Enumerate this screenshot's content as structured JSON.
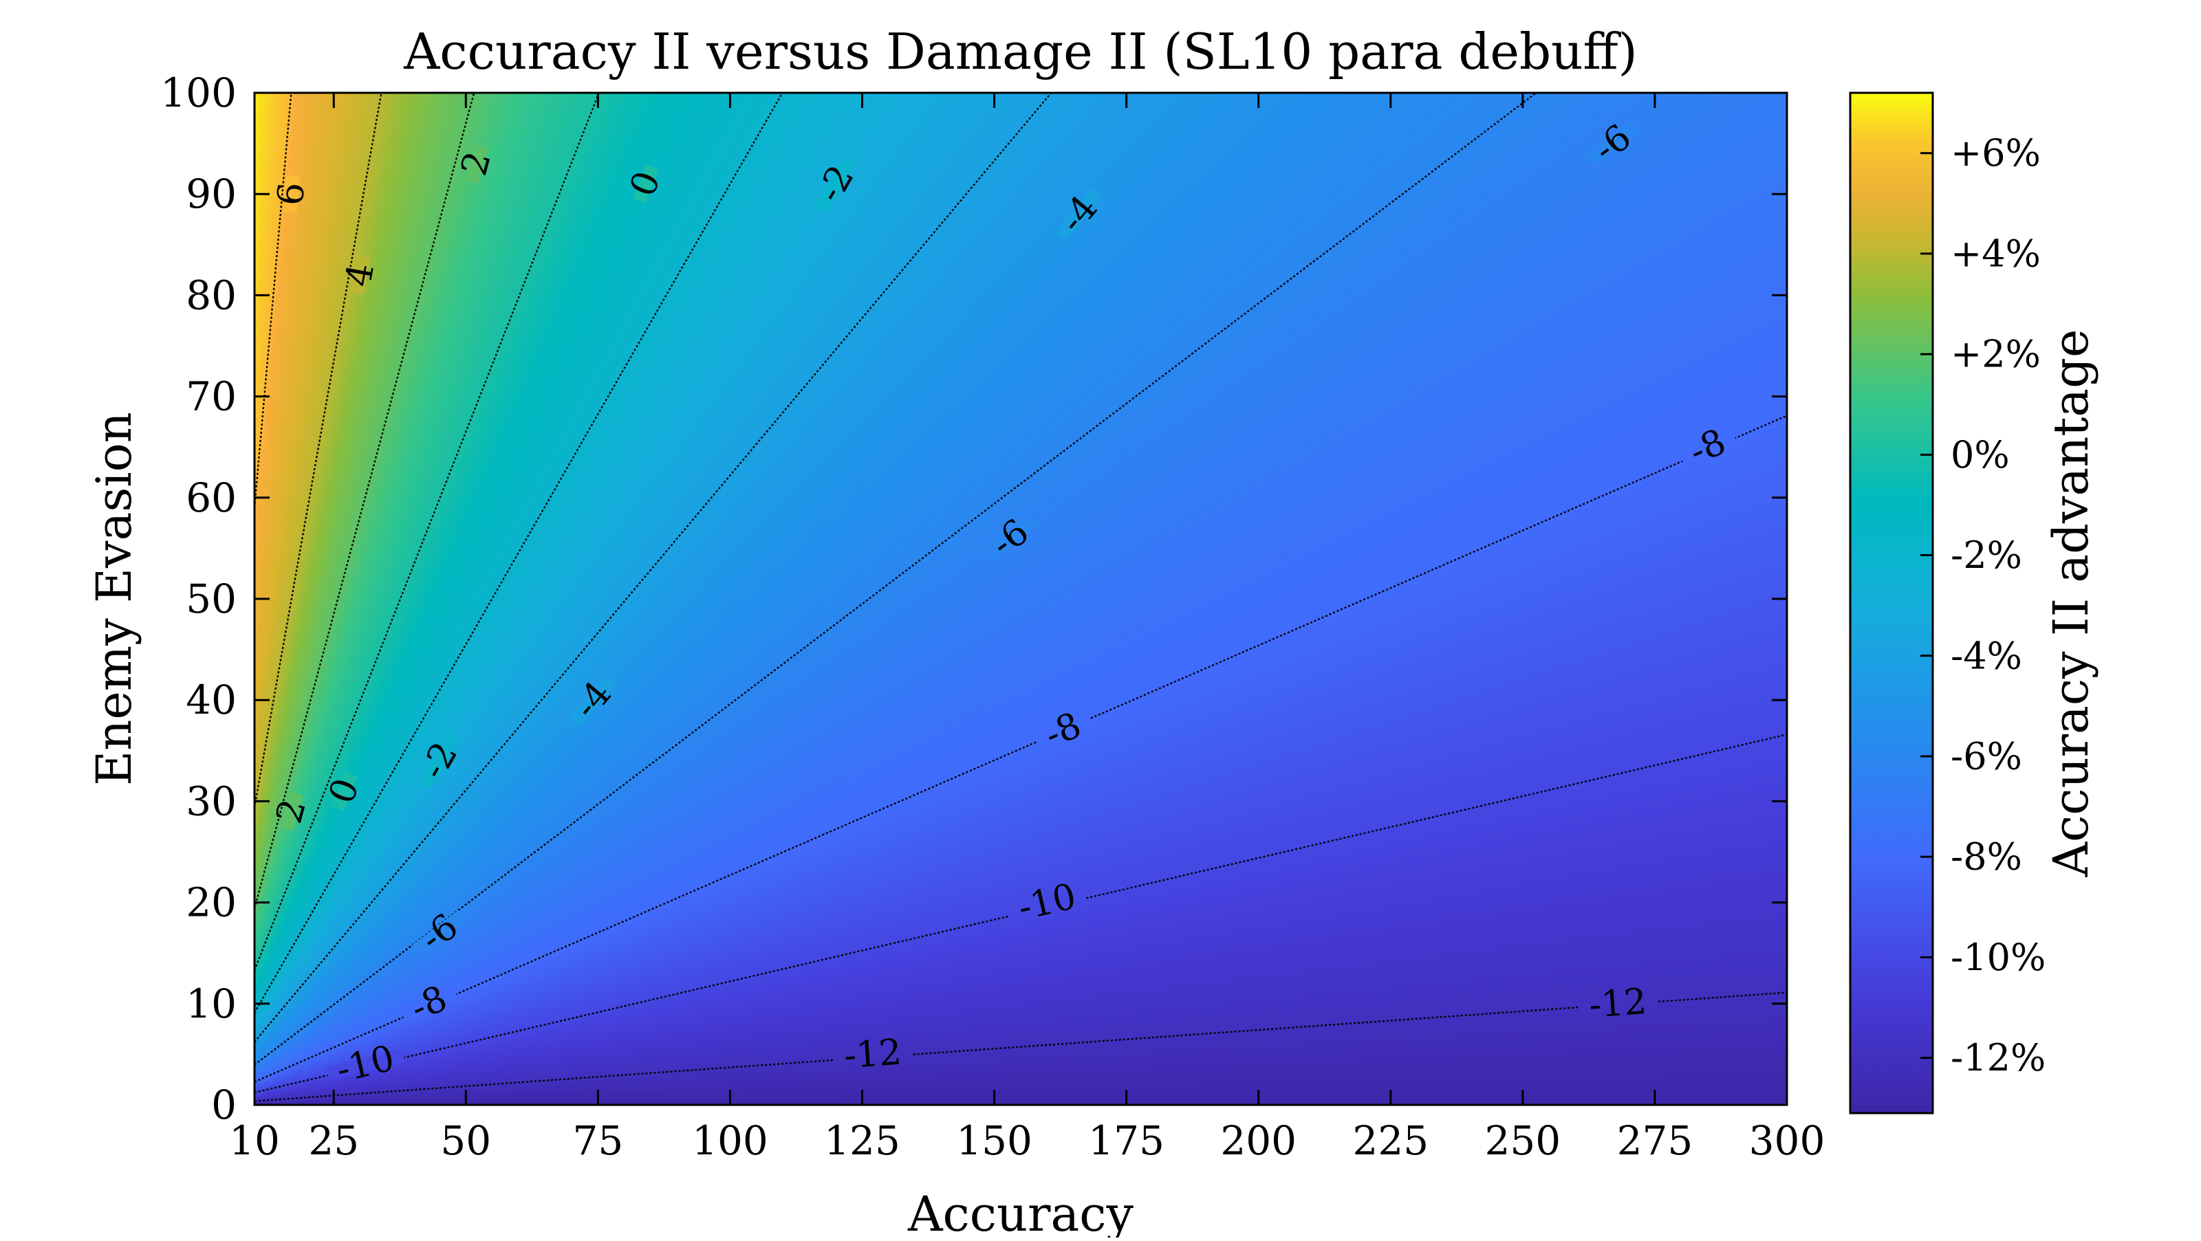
{
  "chart_data": {
    "type": "heatmap",
    "title": "Accuracy II versus Damage II (SL10 para debuff)",
    "xlabel": "Accuracy",
    "ylabel": "Enemy Evasion",
    "xlim": [
      10,
      300
    ],
    "ylim": [
      0,
      100
    ],
    "x_ticks": [
      10,
      25,
      50,
      75,
      100,
      125,
      150,
      175,
      200,
      225,
      250,
      275,
      300
    ],
    "y_ticks": [
      0,
      10,
      20,
      30,
      40,
      50,
      60,
      70,
      80,
      90,
      100
    ],
    "x_tick_labels": [
      "10",
      "25",
      "50",
      "75",
      "100",
      "125",
      "150",
      "175",
      "200",
      "225",
      "250",
      "275",
      "300"
    ],
    "y_tick_labels": [
      "0",
      "10",
      "20",
      "30",
      "40",
      "50",
      "60",
      "70",
      "80",
      "90",
      "100"
    ],
    "grid": false,
    "colorbar": {
      "label": "Accuracy II advantage",
      "range": [
        -13.1,
        7.2
      ],
      "ticks": [
        6,
        4,
        2,
        0,
        -2,
        -4,
        -6,
        -8,
        -10,
        -12
      ],
      "tick_labels": [
        "+6%",
        "+4%",
        "+2%",
        "0%",
        "-2%",
        "-4%",
        "-6%",
        "-8%",
        "-10%",
        "-12%"
      ],
      "colormap": "parula"
    },
    "contours": [
      {
        "level": 6,
        "label": "6",
        "slope": 5.9,
        "label_at": [
          17,
          90
        ]
      },
      {
        "level": 4,
        "label": "4",
        "slope": 2.94,
        "label_at": [
          30,
          82
        ]
      },
      {
        "level": 2,
        "label": "2",
        "slope": 1.94,
        "label_at": [
          52,
          93
        ]
      },
      {
        "level": 2,
        "label": "2",
        "slope": 1.94,
        "label_at": [
          17,
          29
        ]
      },
      {
        "level": 0,
        "label": "0",
        "slope": 1.33,
        "label_at": [
          84,
          91
        ]
      },
      {
        "level": 0,
        "label": "0",
        "slope": 1.33,
        "label_at": [
          27,
          31
        ]
      },
      {
        "level": -2,
        "label": "-2",
        "slope": 0.91,
        "label_at": [
          120,
          91
        ]
      },
      {
        "level": -2,
        "label": "-2",
        "slope": 0.91,
        "label_at": [
          45,
          34
        ]
      },
      {
        "level": -4,
        "label": "-4",
        "slope": 0.622,
        "label_at": [
          166,
          88
        ]
      },
      {
        "level": -4,
        "label": "-4",
        "slope": 0.622,
        "label_at": [
          74,
          40
        ]
      },
      {
        "level": -6,
        "label": "-6",
        "slope": 0.396,
        "label_at": [
          267,
          95
        ]
      },
      {
        "level": -6,
        "label": "-6",
        "slope": 0.396,
        "label_at": [
          153,
          56
        ]
      },
      {
        "level": -6,
        "label": "-6",
        "slope": 0.396,
        "label_at": [
          45,
          17
        ]
      },
      {
        "level": -8,
        "label": "-8",
        "slope": 0.227,
        "label_at": [
          285,
          65
        ]
      },
      {
        "level": -8,
        "label": "-8",
        "slope": 0.227,
        "label_at": [
          163,
          37
        ]
      },
      {
        "level": -8,
        "label": "-8",
        "slope": 0.227,
        "label_at": [
          43,
          10
        ]
      },
      {
        "level": -10,
        "label": "-10",
        "slope": 0.122,
        "label_at": [
          160,
          20
        ]
      },
      {
        "level": -10,
        "label": "-10",
        "slope": 0.122,
        "label_at": [
          31,
          4
        ]
      },
      {
        "level": -12,
        "label": "-12",
        "slope": 0.037,
        "label_at": [
          268,
          10
        ]
      },
      {
        "level": -12,
        "label": "-12",
        "slope": 0.037,
        "label_at": [
          127,
          5
        ]
      }
    ]
  }
}
